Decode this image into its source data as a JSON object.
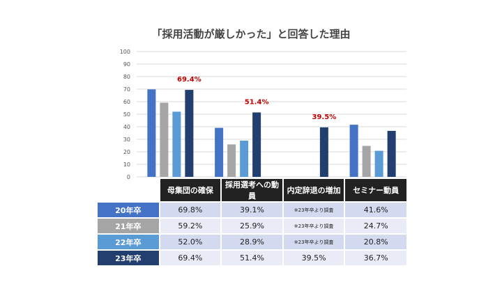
{
  "colors": {
    "20": "#4472c4",
    "21": "#a5a5a5",
    "22": "#5b9bd5",
    "23": "#223f70",
    "highlight": "#c00000",
    "grid": "#d9d9d9"
  },
  "chart_data": {
    "type": "bar",
    "title": "「採用活動が厳しかった」と回答した理由",
    "categories": [
      "母集団の確保",
      "採用選考への動員",
      "内定辞退の増加",
      "セミナー動員"
    ],
    "ylim": [
      0,
      100
    ],
    "yticks": [
      "0",
      "10",
      "20",
      "30",
      "40",
      "50",
      "60",
      "70",
      "80",
      "90",
      "100"
    ],
    "grid": true,
    "legend": "table-left",
    "series": [
      {
        "name": "20年卒",
        "values": [
          69.8,
          39.1,
          null,
          41.6
        ],
        "labels": [
          "69.8%",
          "39.1%",
          "※23年卒より調査",
          "41.6%"
        ]
      },
      {
        "name": "21年卒",
        "values": [
          59.2,
          25.9,
          null,
          24.7
        ],
        "labels": [
          "59.2%",
          "25.9%",
          "※23年卒より調査",
          "24.7%"
        ]
      },
      {
        "name": "22年卒",
        "values": [
          52.0,
          28.9,
          null,
          20.8
        ],
        "labels": [
          "52.0%",
          "28.9%",
          "※23年卒より調査",
          "20.8%"
        ]
      },
      {
        "name": "23年卒",
        "values": [
          69.4,
          51.4,
          39.5,
          36.7
        ],
        "labels": [
          "69.4%",
          "51.4%",
          "39.5%",
          "36.7%"
        ]
      }
    ],
    "annotations": [
      {
        "category": 0,
        "text": "69.4%"
      },
      {
        "category": 1,
        "text": "51.4%"
      },
      {
        "category": 2,
        "text": "39.5%"
      }
    ]
  }
}
